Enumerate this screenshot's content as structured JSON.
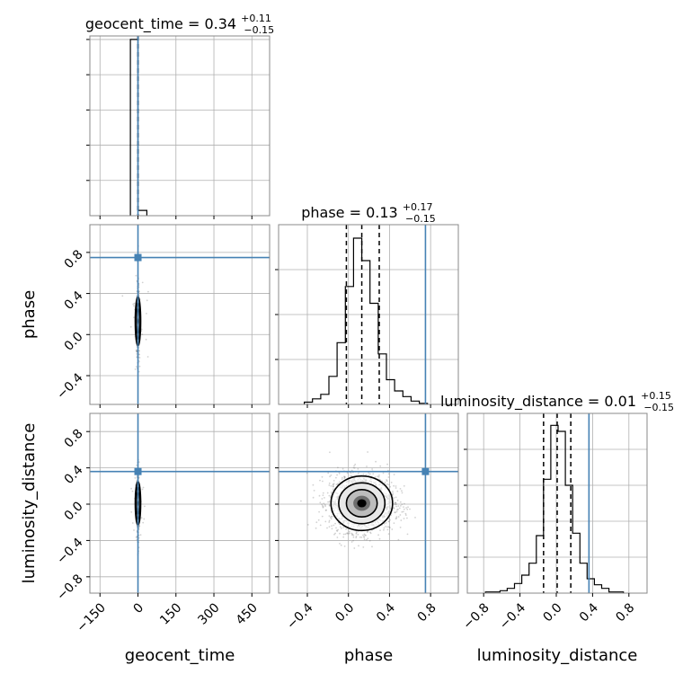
{
  "chart_data": {
    "type": "corner",
    "grid": true,
    "colors": {
      "truth": "#4682b4",
      "hist": "#000000",
      "grid": "#b0b0b0",
      "scatter": "#7f7f7f"
    },
    "parameters": [
      {
        "name": "geocent_time",
        "xlabel": "geocent_time",
        "ylabel": "",
        "range": [
          -190,
          520
        ],
        "ticks": [
          -150,
          0,
          150,
          300,
          450
        ],
        "tick_labels": [
          "−150",
          "0",
          "150",
          "300",
          "450"
        ],
        "truth": 0,
        "median": 0.34,
        "quantiles": [
          0.19,
          0.34,
          0.45
        ],
        "title": {
          "main": "geocent_time = 0.34",
          "sup": "+0.11",
          "sub": "−0.15"
        },
        "hist": {
          "bin_edges": [
            -30,
            0,
            35
          ],
          "counts": [
            1,
            0.03
          ],
          "ymax": 1.02,
          "yticks": [
            0.2,
            0.4,
            0.6,
            0.8,
            1.0
          ]
        }
      },
      {
        "name": "phase",
        "xlabel": "phase",
        "ylabel": "phase",
        "range": [
          -0.68,
          1.07
        ],
        "ticks": [
          -0.4,
          0.0,
          0.4,
          0.8
        ],
        "tick_labels": [
          "−0.4",
          "0.0",
          "0.4",
          "0.8"
        ],
        "truth": 0.75,
        "median": 0.13,
        "quantiles": [
          -0.02,
          0.13,
          0.3
        ],
        "title": {
          "main": "phase = 0.13",
          "sup": "+0.17",
          "sub": "−0.15"
        },
        "hist": {
          "bin_edges": [
            -0.43,
            -0.35,
            -0.27,
            -0.19,
            -0.11,
            -0.03,
            0.05,
            0.13,
            0.21,
            0.29,
            0.37,
            0.45,
            0.53,
            0.61,
            0.69,
            0.77
          ],
          "counts": [
            2,
            5,
            9,
            25,
            55,
            105,
            148,
            128,
            90,
            45,
            22,
            12,
            7,
            3,
            1
          ],
          "ymax": 160,
          "yticks": [
            40,
            80,
            120
          ]
        }
      },
      {
        "name": "luminosity_distance",
        "xlabel": "luminosity_distance",
        "ylabel": "luminosity_distance",
        "range": [
          -0.98,
          1.0
        ],
        "ticks": [
          -0.8,
          -0.4,
          0.0,
          0.4,
          0.8
        ],
        "tick_labels": [
          "−0.8",
          "−0.4",
          "0.0",
          "0.4",
          "0.8"
        ],
        "truth": 0.36,
        "median": 0.01,
        "quantiles": [
          -0.14,
          0.01,
          0.16
        ],
        "title": {
          "main": "luminosity_distance = 0.01",
          "sup": "+0.15",
          "sub": "−0.15"
        },
        "hist": {
          "bin_edges": [
            -0.78,
            -0.7,
            -0.62,
            -0.54,
            -0.46,
            -0.38,
            -0.3,
            -0.22,
            -0.14,
            -0.06,
            0.02,
            0.1,
            0.18,
            0.26,
            0.34,
            0.42,
            0.5,
            0.58,
            0.66,
            0.74
          ],
          "counts": [
            1,
            1,
            2,
            4,
            8,
            15,
            25,
            48,
            95,
            140,
            135,
            90,
            50,
            25,
            12,
            7,
            4,
            1,
            1
          ],
          "ymax": 150,
          "yticks": [
            30,
            60,
            90,
            120
          ]
        }
      }
    ],
    "pairs": [
      {
        "row": 1,
        "col": 0,
        "center": [
          0,
          0.13
        ],
        "spread": [
          3,
          0.12
        ]
      },
      {
        "row": 2,
        "col": 0,
        "center": [
          0,
          0.01
        ],
        "spread": [
          3,
          0.12
        ]
      },
      {
        "row": 2,
        "col": 1,
        "center": [
          0.13,
          0.01
        ],
        "spread": [
          0.15,
          0.15
        ]
      }
    ]
  }
}
